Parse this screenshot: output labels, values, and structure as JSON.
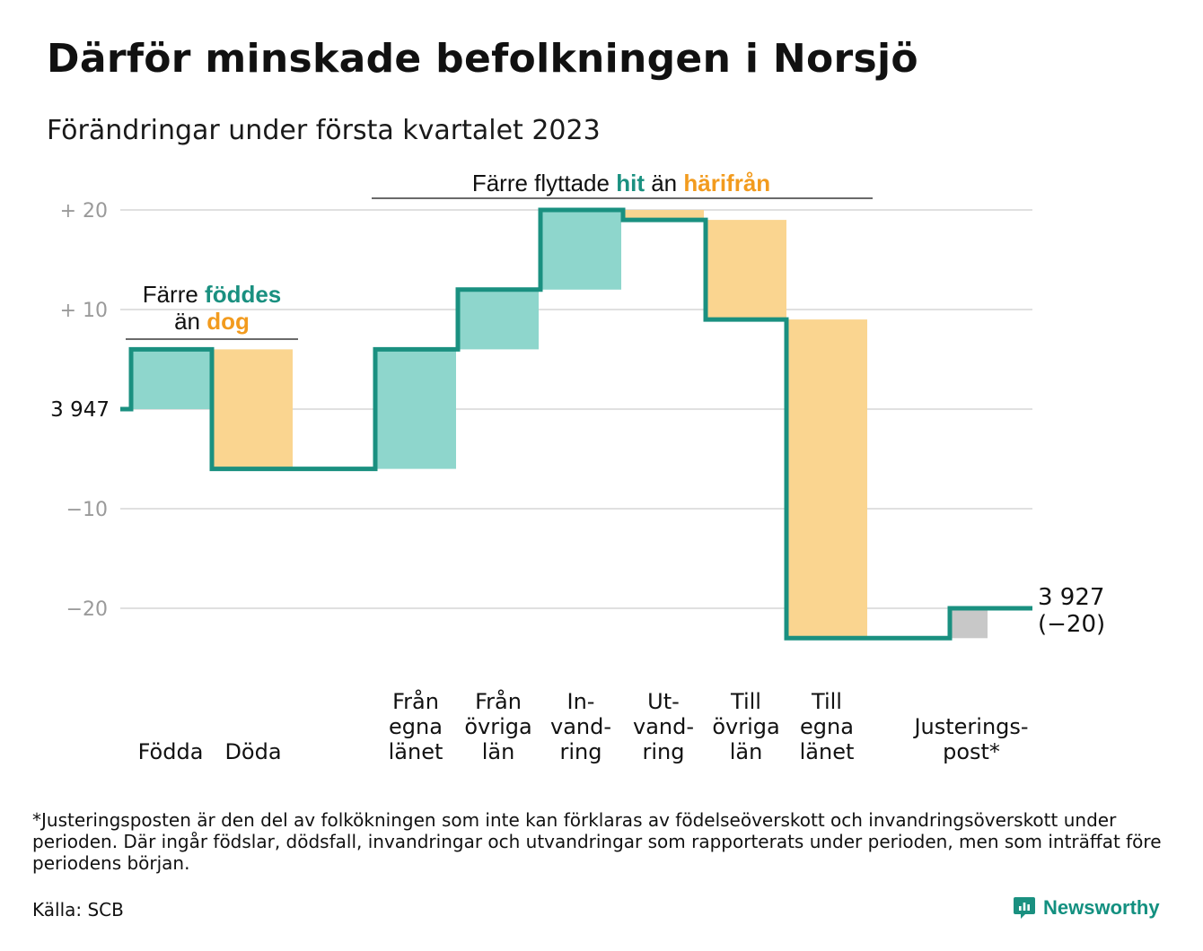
{
  "title": "Därför minskade befolkningen i Norsjö",
  "subtitle": "Förändringar under första kvartalet 2023",
  "colors": {
    "increase": "#8ED6CC",
    "decrease": "#FAD590",
    "adjustment": "#C8C8C8",
    "line": "#1A9080",
    "teal_text": "#1A9080",
    "orange_text": "#F29B1E",
    "grid": "#E0E0E0",
    "tick_text": "#9A9A9A"
  },
  "chart_data": {
    "type": "waterfall",
    "start": {
      "value": 3947,
      "label": "3 947"
    },
    "end": {
      "value": 3927,
      "label": "3 927",
      "change_label": "(−20)"
    },
    "ylim": [
      -25,
      22
    ],
    "yticks": [
      {
        "value": 20,
        "label": "+ 20"
      },
      {
        "value": 10,
        "label": "+ 10"
      },
      {
        "value": 0,
        "label": ""
      },
      {
        "value": -10,
        "label": "−10"
      },
      {
        "value": -20,
        "label": "−20"
      }
    ],
    "steps": [
      {
        "label": [
          "Födda"
        ],
        "delta": 6,
        "kind": "increase"
      },
      {
        "label": [
          "Döda"
        ],
        "delta": -12,
        "kind": "decrease"
      },
      {
        "label": [
          "Från",
          "egna",
          "länet"
        ],
        "delta": 12,
        "kind": "increase"
      },
      {
        "label": [
          "Från",
          "övriga",
          "län"
        ],
        "delta": 6,
        "kind": "increase"
      },
      {
        "label": [
          "In-",
          "vand-",
          "ring"
        ],
        "delta": 8,
        "kind": "increase"
      },
      {
        "label": [
          "Ut-",
          "vand-",
          "ring"
        ],
        "delta": -1,
        "kind": "decrease"
      },
      {
        "label": [
          "Till",
          "övriga",
          "län"
        ],
        "delta": -10,
        "kind": "decrease"
      },
      {
        "label": [
          "Till",
          "egna",
          "länet"
        ],
        "delta": -32,
        "kind": "decrease"
      },
      {
        "label": [
          "Justerings-",
          "post*"
        ],
        "delta": 3,
        "kind": "adjustment"
      }
    ],
    "annotations": [
      {
        "lines": [
          [
            "Färre ",
            "plain"
          ],
          [
            "föddes",
            "teal"
          ]
        ],
        "line2": [
          [
            "än ",
            "plain"
          ],
          [
            "dog",
            "orange"
          ]
        ]
      },
      {
        "lines": [
          [
            "Färre flyttade ",
            "plain"
          ],
          [
            "hit",
            "teal"
          ],
          [
            " än ",
            "plain"
          ],
          [
            "härifrån",
            "orange"
          ]
        ]
      }
    ]
  },
  "footnote": "*Justeringsposten är den del av folkökningen som inte kan förklaras av födelseöverskott och invandringsöverskott under perioden. Där ingår födslar, dödsfall, invandringar och utvandringar som rapporterats under perioden, men som inträffat före periodens början.",
  "source": "Källa: SCB",
  "brand": {
    "name": "Newsworthy",
    "icon": "newsworthy-logo-icon"
  }
}
